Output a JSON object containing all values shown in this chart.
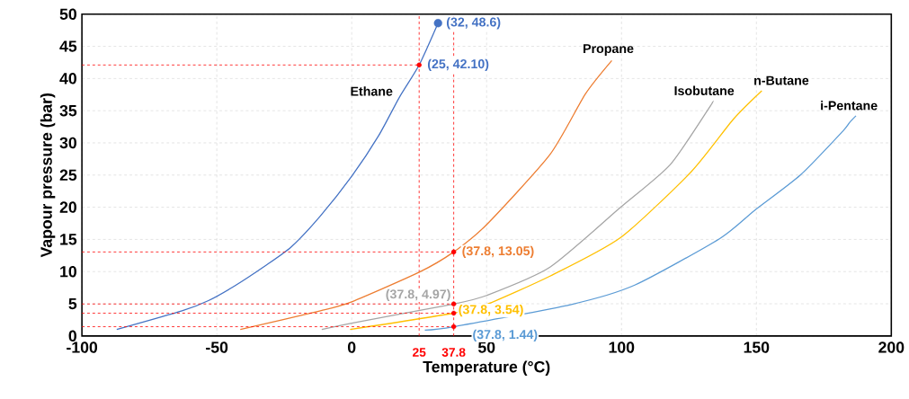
{
  "chart_data": {
    "type": "line",
    "xlabel": "Temperature (°C)",
    "ylabel": "Vapour pressure (bar)",
    "xlim": [
      -100,
      200
    ],
    "ylim": [
      0,
      50
    ],
    "xticks": [
      -100,
      -50,
      0,
      50,
      100,
      150,
      200
    ],
    "yticks": [
      0,
      5,
      10,
      15,
      20,
      25,
      30,
      35,
      40,
      45,
      50
    ],
    "grid": true,
    "series": [
      {
        "name": "Ethane",
        "color": "#4472c4",
        "x": [
          -87.1,
          -62.9,
          -53.1,
          -43.3,
          -32.4,
          -22.5,
          -11.7,
          0,
          10.1,
          17.7,
          25,
          32
        ],
        "values": [
          1.0,
          3.9,
          5.5,
          7.8,
          10.8,
          13.8,
          18.6,
          24.8,
          31.2,
          37.1,
          42.1,
          48.6
        ]
      },
      {
        "name": "Propane",
        "color": "#ed7d31",
        "x": [
          -41.3,
          -11.6,
          0,
          25,
          37.8,
          50,
          73.5,
          86.6,
          96.4
        ],
        "values": [
          1.0,
          3.9,
          5.3,
          9.9,
          13.05,
          17.3,
          28.2,
          37.6,
          42.8
        ]
      },
      {
        "name": "Isobutane",
        "color": "#a5a5a5",
        "x": [
          -11.1,
          0,
          37.8,
          50,
          73.5,
          99.7,
          118,
          132.4,
          133.9
        ],
        "values": [
          1.0,
          2.0,
          4.97,
          6.3,
          10.7,
          20.0,
          26.6,
          35.4,
          36.5
        ]
      },
      {
        "name": "n-Butane",
        "color": "#ffc000",
        "x": [
          -0.6,
          37.8,
          50,
          73.5,
          99.7,
          125.8,
          141.5,
          152
        ],
        "values": [
          1.0,
          3.54,
          4.9,
          9.3,
          15.3,
          25.5,
          33.7,
          38.1
        ]
      },
      {
        "name": "i-Pentane",
        "color": "#5b9bd5",
        "x": [
          27.1,
          37.8,
          81.4,
          104.9,
          136.3,
          149.3,
          166.3,
          182,
          184.6,
          186.9
        ],
        "values": [
          0.9,
          1.44,
          4.9,
          7.9,
          15.1,
          19.5,
          25.0,
          31.8,
          33.2,
          34.2
        ]
      },
      {
        "type": "scatter",
        "color": "#4472c4",
        "marker": "circle",
        "x": [
          32
        ],
        "values": [
          48.6
        ]
      },
      {
        "type": "scatter",
        "color": "#ff0000",
        "marker": "circle",
        "line_style": "dashed",
        "x": [
          25,
          37.8,
          37.8,
          37.8,
          37.8
        ],
        "values": [
          42.1,
          13.05,
          4.97,
          3.54,
          1.44
        ]
      }
    ],
    "ref_lines": [
      {
        "axis": "x",
        "value": 25,
        "label": "25",
        "color": "#ff0000",
        "line_style": "dashed"
      },
      {
        "axis": "x",
        "value": 37.8,
        "label": "37.8",
        "color": "#ff0000",
        "line_style": "dashed"
      }
    ],
    "annotations": [
      {
        "text": "(32, 48.6)",
        "x": 32,
        "y": 48.6
      },
      {
        "text": "(25, 42.10)",
        "x": 25,
        "y": 42.1
      },
      {
        "text": "(37.8, 13.05)",
        "x": 37.8,
        "y": 13.05
      },
      {
        "text": "(37.8, 4.97)",
        "x": 37.8,
        "y": 4.97
      },
      {
        "text": "(37.8, 3.54)",
        "x": 37.8,
        "y": 3.54
      },
      {
        "text": "(37.8, 1.44)",
        "x": 37.8,
        "y": 1.44
      }
    ]
  }
}
